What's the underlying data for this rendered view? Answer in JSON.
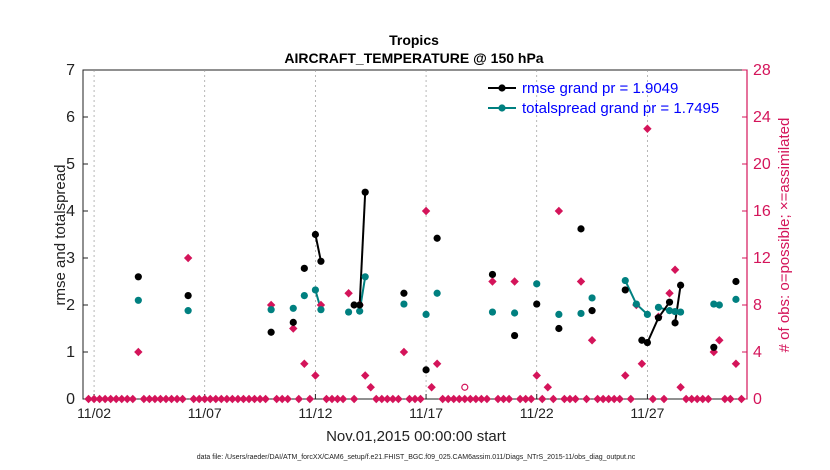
{
  "chart_data": {
    "type": "line",
    "title": "Tropics",
    "subtitle": "AIRCRAFT_TEMPERATURE @ 150 hPa",
    "xlabel": "Nov.01,2015 00:00:00 start",
    "ylabel": "rmse and totalspread",
    "y2label": "# of obs: o=possible; ×=assimilated",
    "footer": "data file: /Users/raeder/DAI/ATM_forcXX/CAM6_setup/f.e21.FHIST_BGC.f09_025.CAM6assim.011/Diags_NTrS_2015-11/obs_diag_output.nc",
    "x_tick_labels": [
      "11/02",
      "11/07",
      "11/12",
      "11/17",
      "11/22",
      "11/27"
    ],
    "x_tick_values": [
      2,
      7,
      12,
      17,
      22,
      27
    ],
    "xlim": [
      1.5,
      31.5
    ],
    "ylim": [
      0,
      7
    ],
    "y_ticks": [
      0,
      1,
      2,
      3,
      4,
      5,
      6,
      7
    ],
    "y2lim": [
      0,
      28
    ],
    "y2_ticks": [
      0,
      4,
      8,
      12,
      16,
      20,
      24,
      28
    ],
    "colors": {
      "rmse": "#000000",
      "spread": "#008080",
      "obs": "#d4145a"
    },
    "legend": [
      {
        "label": "rmse grand pr = 1.9049",
        "color": "#000000"
      },
      {
        "label": "totalspread grand pr = 1.7495",
        "color": "#008080"
      }
    ],
    "legend_placement": "top-right",
    "rmse": [
      [
        4.0,
        2.6
      ],
      [
        6.25,
        2.2
      ],
      [
        10.0,
        1.42
      ],
      [
        11.0,
        1.63
      ],
      [
        11.5,
        2.78
      ],
      [
        12.0,
        3.5
      ],
      [
        12.25,
        2.93
      ],
      [
        13.75,
        2.0
      ],
      [
        14.0,
        2.0
      ],
      [
        14.25,
        4.4
      ],
      [
        16.0,
        2.25
      ],
      [
        17.0,
        0.62
      ],
      [
        17.5,
        3.42
      ],
      [
        20.0,
        2.65
      ],
      [
        21.0,
        1.35
      ],
      [
        22.0,
        2.02
      ],
      [
        23.0,
        1.5
      ],
      [
        24.0,
        3.62
      ],
      [
        24.5,
        1.88
      ],
      [
        26.0,
        2.32
      ],
      [
        26.75,
        1.25
      ],
      [
        27.0,
        1.2
      ],
      [
        27.5,
        1.73
      ],
      [
        28.0,
        2.06
      ],
      [
        28.25,
        1.62
      ],
      [
        28.5,
        2.42
      ],
      [
        30.0,
        1.1
      ],
      [
        31.0,
        2.5
      ]
    ],
    "rmse_connected": [
      [
        11.75,
        12.0,
        12.25
      ],
      [
        14.0,
        14.25
      ],
      [
        26.75,
        27.0,
        27.5,
        28.0
      ],
      [
        28.25,
        28.5
      ]
    ],
    "spread": [
      [
        4.0,
        2.1
      ],
      [
        6.25,
        1.88
      ],
      [
        10.0,
        1.9
      ],
      [
        11.0,
        1.93
      ],
      [
        11.5,
        2.2
      ],
      [
        12.0,
        2.32
      ],
      [
        12.25,
        1.9
      ],
      [
        13.5,
        1.85
      ],
      [
        14.0,
        1.87
      ],
      [
        14.25,
        2.6
      ],
      [
        16.0,
        2.02
      ],
      [
        17.0,
        1.8
      ],
      [
        17.5,
        2.25
      ],
      [
        20.0,
        1.85
      ],
      [
        21.0,
        1.83
      ],
      [
        22.0,
        2.45
      ],
      [
        23.0,
        1.8
      ],
      [
        24.0,
        1.82
      ],
      [
        24.5,
        2.15
      ],
      [
        26.0,
        2.52
      ],
      [
        26.5,
        2.02
      ],
      [
        27.0,
        1.8
      ],
      [
        27.5,
        1.95
      ],
      [
        28.0,
        1.88
      ],
      [
        28.25,
        1.86
      ],
      [
        28.5,
        1.85
      ],
      [
        30.0,
        2.02
      ],
      [
        30.25,
        2.0
      ],
      [
        31.0,
        2.12
      ]
    ],
    "spread_connected": [
      [
        11.75,
        12.0,
        12.25
      ],
      [
        14.0,
        14.25
      ],
      [
        26.0,
        26.5,
        27.0
      ],
      [
        27.5,
        28.0,
        28.25,
        28.5
      ]
    ],
    "obs_assimilated": [
      [
        4.0,
        4.0
      ],
      [
        6.25,
        12.0
      ],
      [
        10.0,
        8.0
      ],
      [
        11.0,
        6.0
      ],
      [
        11.5,
        3.0
      ],
      [
        12.0,
        2.0
      ],
      [
        12.25,
        8.0
      ],
      [
        13.5,
        9.0
      ],
      [
        14.0,
        8.0
      ],
      [
        14.25,
        2.0
      ],
      [
        14.5,
        1.0
      ],
      [
        16.0,
        4.0
      ],
      [
        17.0,
        16.0
      ],
      [
        17.25,
        1.0
      ],
      [
        17.5,
        3.0
      ],
      [
        20.0,
        10.0
      ],
      [
        21.0,
        10.0
      ],
      [
        22.0,
        2.0
      ],
      [
        22.5,
        1.0
      ],
      [
        23.0,
        16.0
      ],
      [
        24.0,
        10.0
      ],
      [
        24.5,
        5.0
      ],
      [
        26.0,
        2.0
      ],
      [
        26.5,
        8.0
      ],
      [
        26.75,
        3.0
      ],
      [
        27.0,
        23.0
      ],
      [
        27.5,
        7.0
      ],
      [
        28.0,
        9.0
      ],
      [
        28.25,
        11.0
      ],
      [
        28.5,
        1.0
      ],
      [
        30.0,
        4.0
      ],
      [
        30.25,
        5.0
      ],
      [
        31.0,
        3.0
      ]
    ],
    "obs_possible": [
      [
        18.75,
        1.0
      ]
    ],
    "zero_obs_x": [
      1.75,
      2.0,
      2.25,
      2.5,
      2.75,
      3.0,
      3.25,
      3.5,
      3.75,
      4.25,
      4.5,
      4.75,
      5.0,
      5.25,
      5.5,
      5.75,
      6.0,
      6.5,
      6.75,
      7.0,
      7.25,
      7.5,
      7.75,
      8.0,
      8.25,
      8.5,
      8.75,
      9.0,
      9.25,
      9.5,
      9.75,
      10.25,
      10.5,
      10.75,
      11.25,
      11.75,
      12.5,
      12.75,
      13.0,
      13.25,
      13.75,
      14.75,
      15.0,
      15.25,
      15.5,
      15.75,
      16.25,
      16.5,
      16.75,
      17.75,
      18.0,
      18.25,
      18.5,
      18.75,
      19.0,
      19.25,
      19.5,
      19.75,
      20.25,
      20.5,
      20.75,
      21.25,
      21.5,
      21.75,
      22.25,
      22.75,
      23.25,
      23.5,
      23.75,
      24.25,
      24.75,
      25.0,
      25.25,
      25.5,
      25.75,
      26.25,
      27.25,
      27.75,
      28.75,
      29.0,
      29.25,
      29.5,
      29.75,
      30.5,
      30.75,
      31.25
    ]
  }
}
